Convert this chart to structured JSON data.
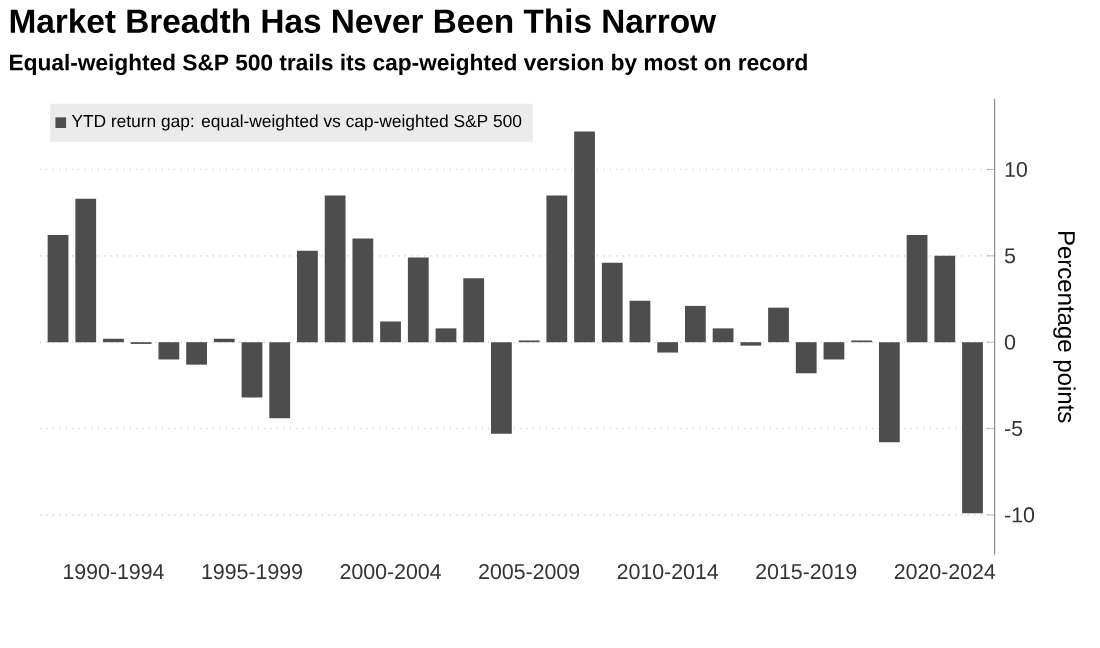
{
  "chart_data": {
    "type": "bar",
    "title": "Market Breadth Has Never Been This Narrow",
    "subtitle": "Equal-weighted S&P 500 trails its cap-weighted version by most on record",
    "ylabel": "Percentage points",
    "categories": [
      null,
      null,
      "1990-1994",
      null,
      null,
      null,
      null,
      "1995-1999",
      null,
      null,
      null,
      null,
      "2000-2004",
      null,
      null,
      null,
      null,
      "2005-2009",
      null,
      null,
      null,
      null,
      "2010-2014",
      null,
      null,
      null,
      null,
      "2015-2019",
      null,
      null,
      null,
      null,
      "2020-2024",
      null
    ],
    "series": [
      {
        "name": "YTD return gap: equal-weighted vs cap-weighted S&P 500",
        "color": "#4d4d4d",
        "values": [
          6.2,
          8.3,
          0.2,
          -0.1,
          -1.0,
          -1.3,
          0.2,
          -3.2,
          -4.4,
          5.3,
          8.5,
          6.0,
          1.2,
          4.9,
          0.8,
          3.7,
          -5.3,
          0.1,
          8.5,
          12.2,
          4.6,
          2.4,
          -0.6,
          2.1,
          0.8,
          -0.2,
          2.0,
          -1.8,
          -1.0,
          0.1,
          -5.8,
          6.2,
          5.0,
          -9.9
        ]
      }
    ],
    "ylim": [
      -12.3,
      14.1
    ],
    "yticks": [
      -10,
      -5,
      0,
      5,
      10
    ],
    "grid": "y",
    "legend": "top left"
  }
}
